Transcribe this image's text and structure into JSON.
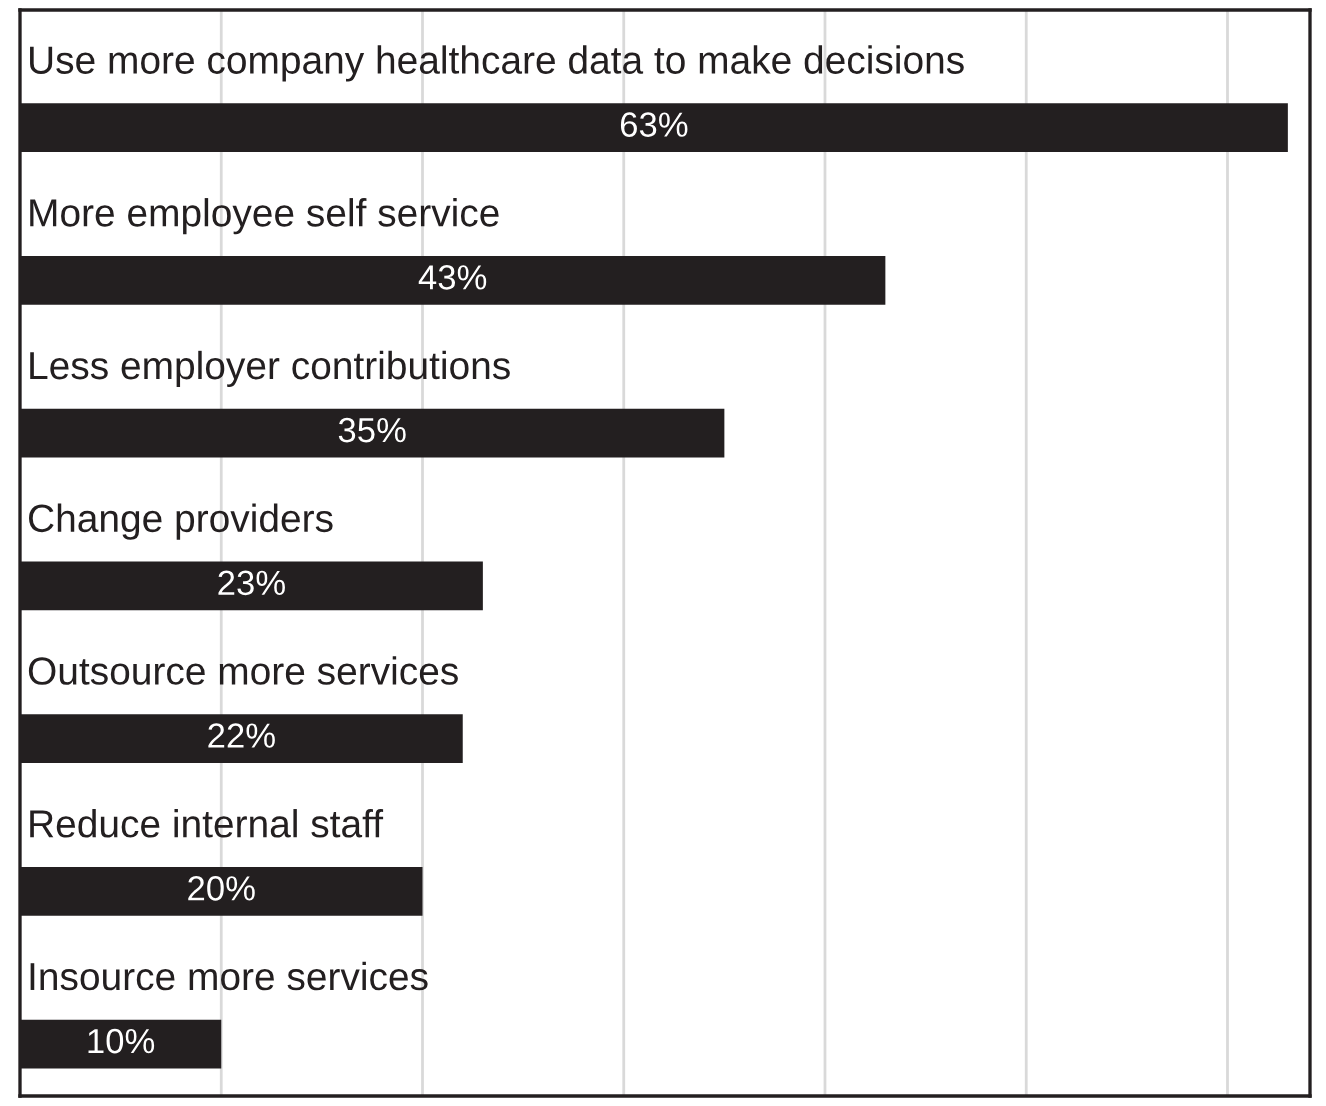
{
  "chart_data": {
    "type": "bar",
    "orientation": "horizontal",
    "categories": [
      "Use more company healthcare data to make decisions",
      "More employee self service",
      "Less employer contributions",
      "Change providers",
      "Outsource more services",
      "Reduce internal staff",
      "Insource more services"
    ],
    "values": [
      63,
      43,
      35,
      23,
      22,
      20,
      10
    ],
    "value_labels": [
      "63%",
      "43%",
      "35%",
      "23%",
      "22%",
      "20%",
      "10%"
    ],
    "color": "#231f20",
    "xlim": [
      0,
      64.1
    ],
    "xticks": [
      {
        "value": 10,
        "label": null
      },
      {
        "value": 20,
        "label": null
      },
      {
        "value": 30,
        "label": null
      },
      {
        "value": 40,
        "label": null
      },
      {
        "value": 50,
        "label": null
      },
      {
        "value": 60,
        "label": null
      }
    ],
    "grid": "x",
    "legend": false
  }
}
